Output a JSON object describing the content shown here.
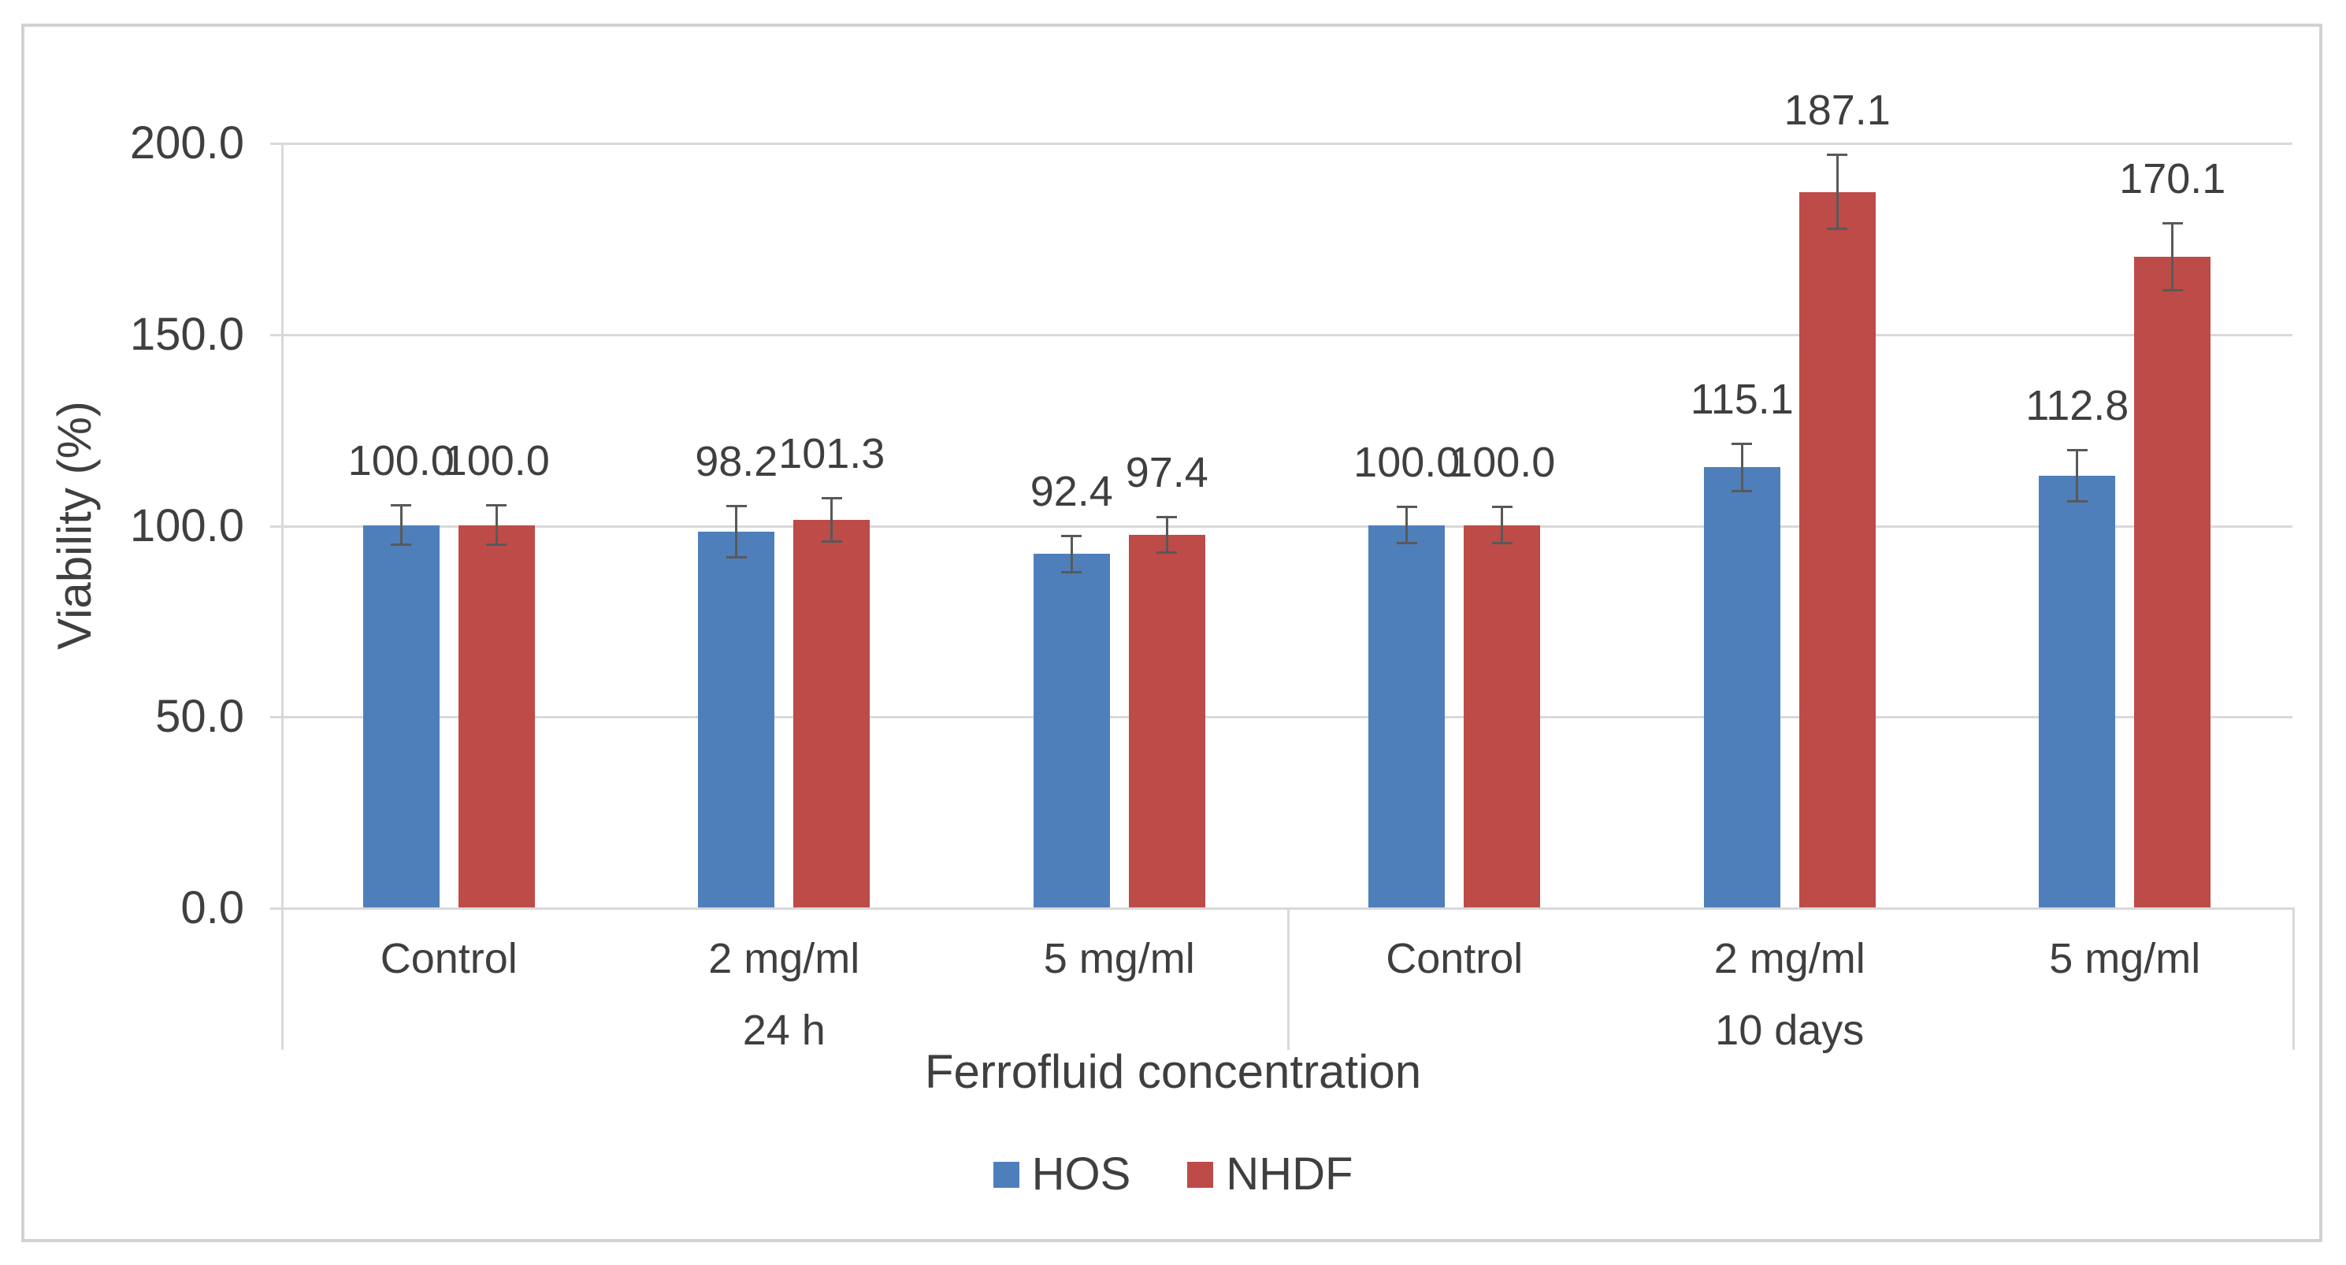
{
  "chart_data": {
    "type": "bar",
    "title": "",
    "xlabel": "Ferrofluid concentration",
    "ylabel": "Viability (%)",
    "ylim": [
      0,
      200
    ],
    "yticks": [
      0,
      50,
      100,
      150,
      200
    ],
    "ytick_labels": [
      "0.0",
      "50.0",
      "100.0",
      "150.0",
      "200.0"
    ],
    "categories": [
      "Control",
      "2 mg/ml",
      "5 mg/ml",
      "Control",
      "2 mg/ml",
      "5 mg/ml"
    ],
    "group_labels": [
      "24 h",
      "10 days"
    ],
    "grid": true,
    "legend_position": "bottom",
    "series": [
      {
        "name": "HOS",
        "color": "#4e7fba",
        "values": [
          100.0,
          98.2,
          92.4,
          100.0,
          115.1,
          112.8
        ],
        "labels": [
          "100.0",
          "98.2",
          "92.4",
          "100.0",
          "115.1",
          "112.8"
        ],
        "errors": [
          5.5,
          7.0,
          5.0,
          5.0,
          6.5,
          7.0
        ]
      },
      {
        "name": "NHDF",
        "color": "#bd4b48",
        "values": [
          100.0,
          101.3,
          97.4,
          100.0,
          187.1,
          170.1
        ],
        "labels": [
          "100.0",
          "101.3",
          "97.4",
          "100.0",
          "187.1",
          "170.1"
        ],
        "errors": [
          5.5,
          6.0,
          5.0,
          5.0,
          10.0,
          9.0
        ]
      }
    ],
    "colors": {
      "gridline": "#d9d9d9",
      "frame_border": "#d2d2d2",
      "text": "#3f3f3f",
      "error_bar": "#595959"
    }
  }
}
